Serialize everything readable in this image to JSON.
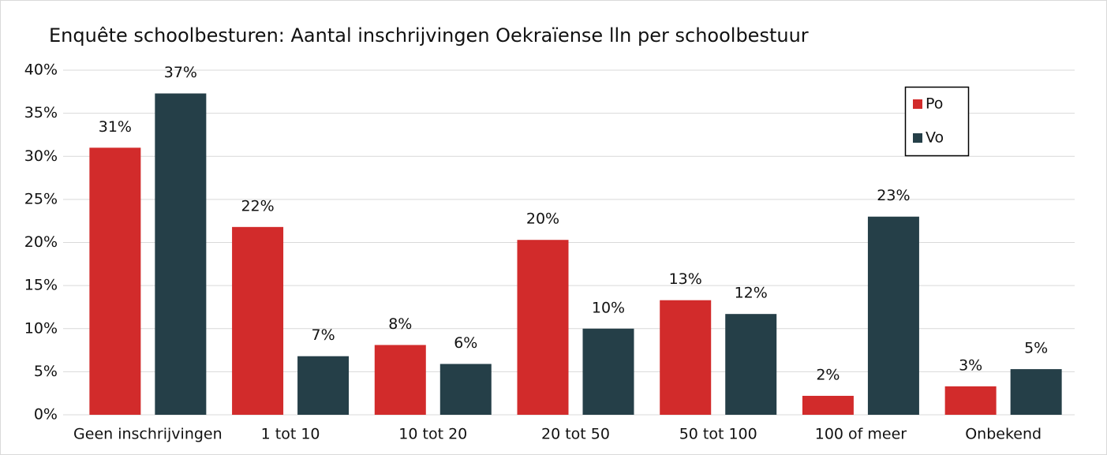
{
  "chart_data": {
    "type": "bar",
    "title": "Enquête schoolbesturen: Aantal inschrijvingen Oekraïense lln per schoolbestuur",
    "categories": [
      "Geen inschrijvingen",
      "1 tot 10",
      "10 tot 20",
      "20 tot 50",
      "50 tot 100",
      "100 of meer",
      "Onbekend"
    ],
    "series": [
      {
        "name": "Po",
        "color": "#d22b2b",
        "values": [
          31.0,
          21.8,
          8.1,
          20.3,
          13.3,
          2.2,
          3.3
        ],
        "value_labels": [
          "31%",
          "22%",
          "8%",
          "20%",
          "13%",
          "2%",
          "3%"
        ]
      },
      {
        "name": "Vo",
        "color": "#253f48",
        "values": [
          37.3,
          6.8,
          5.9,
          10.0,
          11.7,
          23.0,
          5.3
        ],
        "value_labels": [
          "37%",
          "7%",
          "6%",
          "10%",
          "12%",
          "23%",
          "5%"
        ]
      }
    ],
    "ylim": [
      0,
      40
    ],
    "yticks": [
      {
        "value": 0,
        "label": "0%"
      },
      {
        "value": 5,
        "label": "5%"
      },
      {
        "value": 10,
        "label": "10%"
      },
      {
        "value": 15,
        "label": "15%"
      },
      {
        "value": 20,
        "label": "20%"
      },
      {
        "value": 25,
        "label": "25%"
      },
      {
        "value": 30,
        "label": "30%"
      },
      {
        "value": 35,
        "label": "35%"
      },
      {
        "value": 40,
        "label": "40%"
      }
    ],
    "grid": true,
    "legend": "upper right"
  }
}
